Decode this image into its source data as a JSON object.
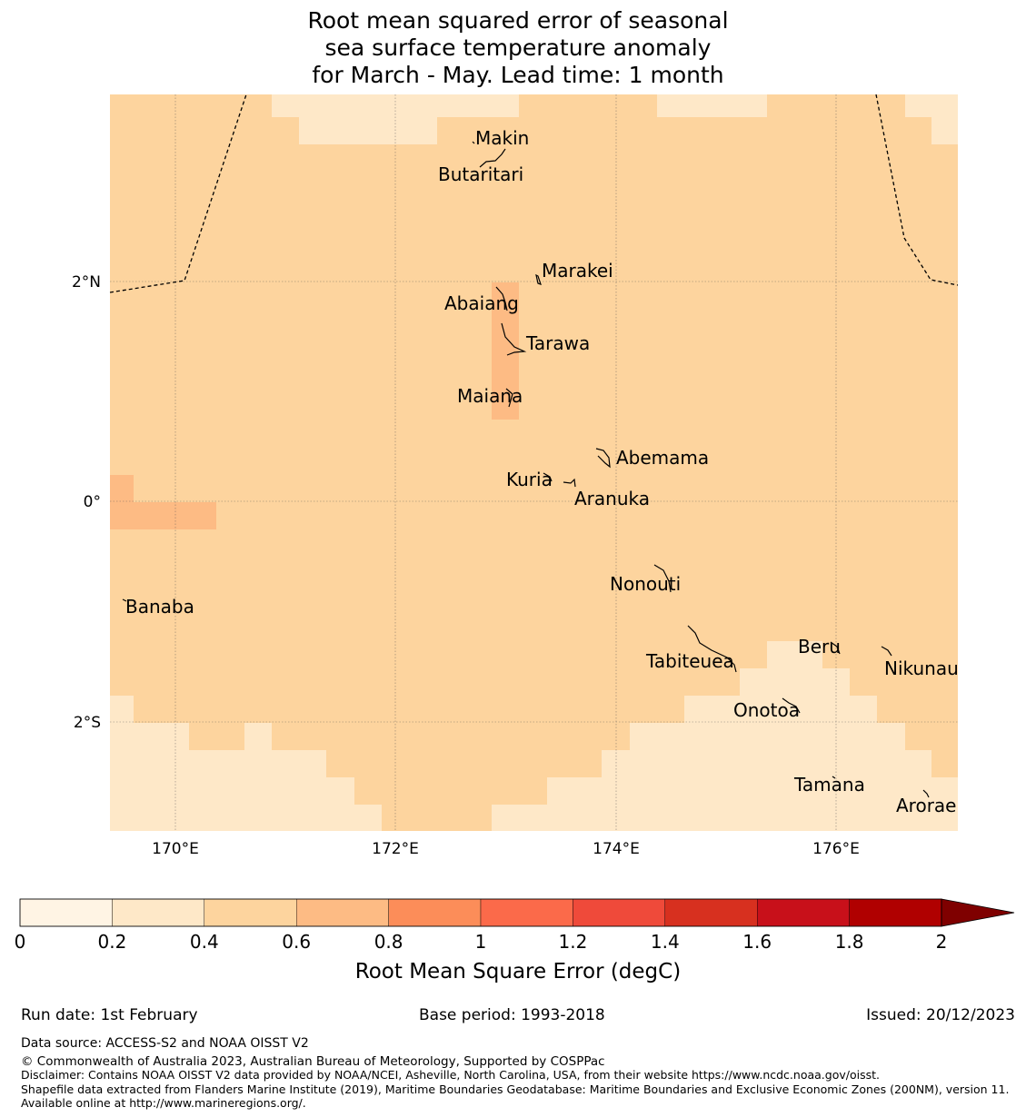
{
  "title": {
    "line1": "Root mean squared error of seasonal",
    "line2": "sea surface temperature anomaly",
    "line3": "for March - May. Lead time: 1 month"
  },
  "map": {
    "lat_ticks": [
      "2°N",
      "0°",
      "2°S"
    ],
    "lon_ticks": [
      "170°E",
      "172°E",
      "174°E",
      "176°E"
    ],
    "islands": [
      "Makin",
      "Butaritari",
      "Marakei",
      "Abaiang",
      "Tarawa",
      "Maiana",
      "Abemama",
      "Kuria",
      "Aranuka",
      "Nonouti",
      "Banaba",
      "Beru",
      "Tabiteuea",
      "Nikunau",
      "Onotoa",
      "Tamana",
      "Arorae"
    ]
  },
  "colorbar": {
    "label": "Root Mean Square Error (degC)",
    "ticks": [
      "0",
      "0.2",
      "0.4",
      "0.6",
      "0.8",
      "1",
      "1.2",
      "1.4",
      "1.6",
      "1.8",
      "2"
    ],
    "colors": [
      "#fff4e4",
      "#fee8c8",
      "#fdd49e",
      "#fdbb84",
      "#fc8d59",
      "#fb6a4a",
      "#ef4a3a",
      "#d7301f",
      "#c8101a",
      "#b00000"
    ],
    "extend_color": "#7f0000"
  },
  "colors": {
    "band_0_2_0_4": "#fee8c8",
    "band_0_4_0_6": "#fdd49e",
    "band_0_6_0_8": "#fdbb84"
  },
  "footer": {
    "run_date": "Run date: 1st February",
    "base_period": "Base period: 1993-2018",
    "issued": "Issued: 20/12/2023",
    "data_source": "Data source: ACCESS-S2 and NOAA OISST V2",
    "copyright": "© Commonwealth of Australia 2023, Australian Bureau of Meteorology, Supported by COSPPac",
    "disclaimer": "Disclaimer: Contains NOAA OISST V2 data provided by NOAA/NCEI, Asheville, North Carolina, USA, from their website https://www.ncdc.noaa.gov/oisst.",
    "shapefile": "Shapefile data extracted from Flanders Marine Institute (2019), Maritime Boundaries Geodatabase: Maritime Boundaries and Exclusive Economic Zones (200NM), version 11. Available online at http://www.marineregions.org/."
  }
}
